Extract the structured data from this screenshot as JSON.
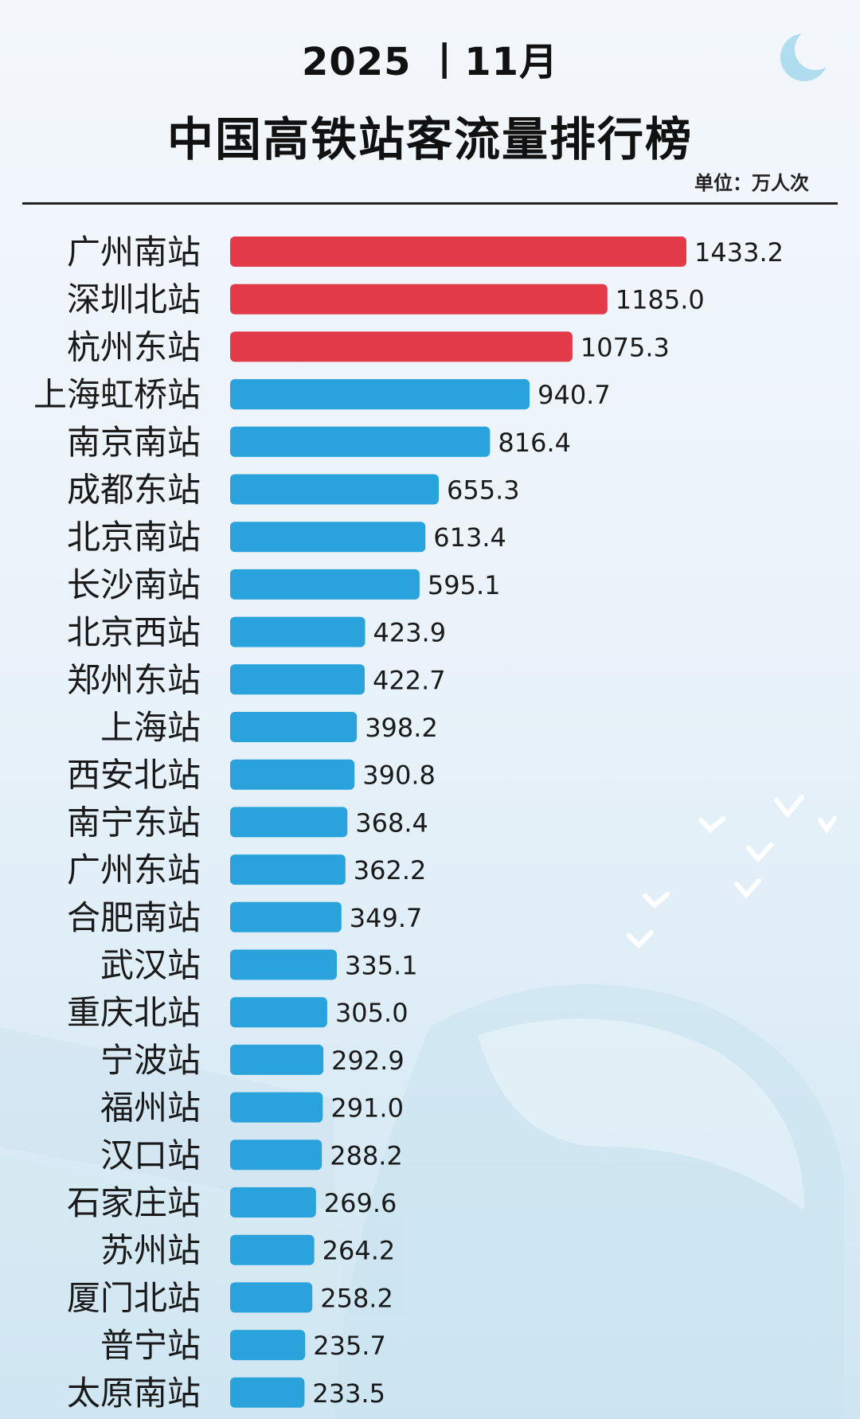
{
  "header": {
    "year": "2025 丨11月",
    "title": "中国高铁站客流量排行榜",
    "unit": "单位：万人次"
  },
  "colors": {
    "top3": "#e23a48",
    "others": "#2aa3dc"
  },
  "chart_data": {
    "type": "bar",
    "orientation": "horizontal",
    "title": "中国高铁站客流量排行榜",
    "subtitle": "2025 丨11月",
    "unit": "单位：万人次",
    "categories": [
      "广州南站",
      "深圳北站",
      "杭州东站",
      "上海虹桥站",
      "南京南站",
      "成都东站",
      "北京南站",
      "长沙南站",
      "北京西站",
      "郑州东站",
      "上海站",
      "西安北站",
      "南宁东站",
      "广州东站",
      "合肥南站",
      "武汉站",
      "重庆北站",
      "宁波站",
      "福州站",
      "汉口站",
      "石家庄站",
      "苏州站",
      "厦门北站",
      "普宁站",
      "太原南站"
    ],
    "values": [
      1433.2,
      1185.0,
      1075.3,
      940.7,
      816.4,
      655.3,
      613.4,
      595.1,
      423.9,
      422.7,
      398.2,
      390.8,
      368.4,
      362.2,
      349.7,
      335.1,
      305.0,
      292.9,
      291.0,
      288.2,
      269.6,
      264.2,
      258.2,
      235.7,
      233.5
    ],
    "value_labels": [
      "1433.2",
      "1185.0",
      "1075.3",
      "940.7",
      "816.4",
      "655.3",
      "613.4",
      "595.1",
      "423.9",
      "422.7",
      "398.2",
      "390.8",
      "368.4",
      "362.2",
      "349.7",
      "335.1",
      "305.0",
      "292.9",
      "291.0",
      "288.2",
      "269.6",
      "264.2",
      "258.2",
      "235.7",
      "233.5"
    ],
    "highlight_top": 3,
    "xlim": [
      0,
      1433.2
    ],
    "grid": false,
    "legend": "none"
  }
}
